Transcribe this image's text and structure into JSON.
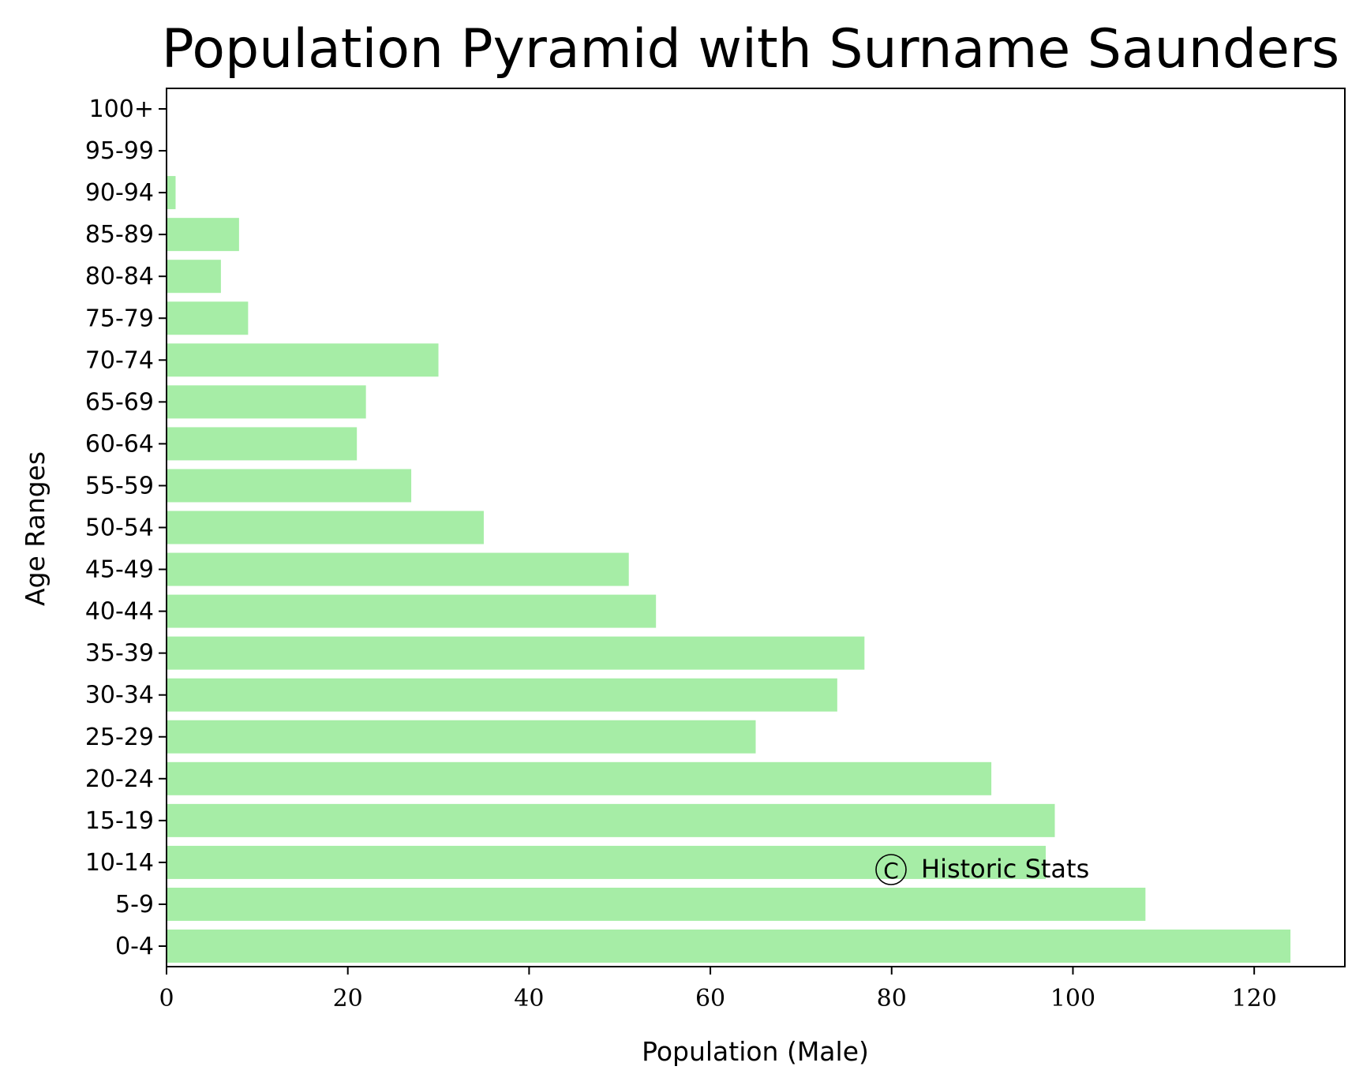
{
  "chart_data": {
    "type": "bar",
    "orientation": "horizontal",
    "title": "Population Pyramid with Surname Saunders",
    "xlabel": "Population (Male)",
    "ylabel": "Age Ranges",
    "categories": [
      "0-4",
      "5-9",
      "10-14",
      "15-19",
      "20-24",
      "25-29",
      "30-34",
      "35-39",
      "40-44",
      "45-49",
      "50-54",
      "55-59",
      "60-64",
      "65-69",
      "70-74",
      "75-79",
      "80-84",
      "85-89",
      "90-94",
      "95-99",
      "100+"
    ],
    "values": [
      124,
      108,
      97,
      98,
      91,
      65,
      74,
      77,
      54,
      51,
      35,
      27,
      21,
      22,
      30,
      9,
      6,
      8,
      1,
      0,
      0
    ],
    "xlim": [
      0,
      130
    ],
    "xticks": [
      "0",
      "20",
      "40",
      "60",
      "80",
      "100",
      "120"
    ],
    "bar_color": "#a6eda6",
    "grid": false,
    "watermark_symbol": "C",
    "watermark": "Historic Stats"
  }
}
